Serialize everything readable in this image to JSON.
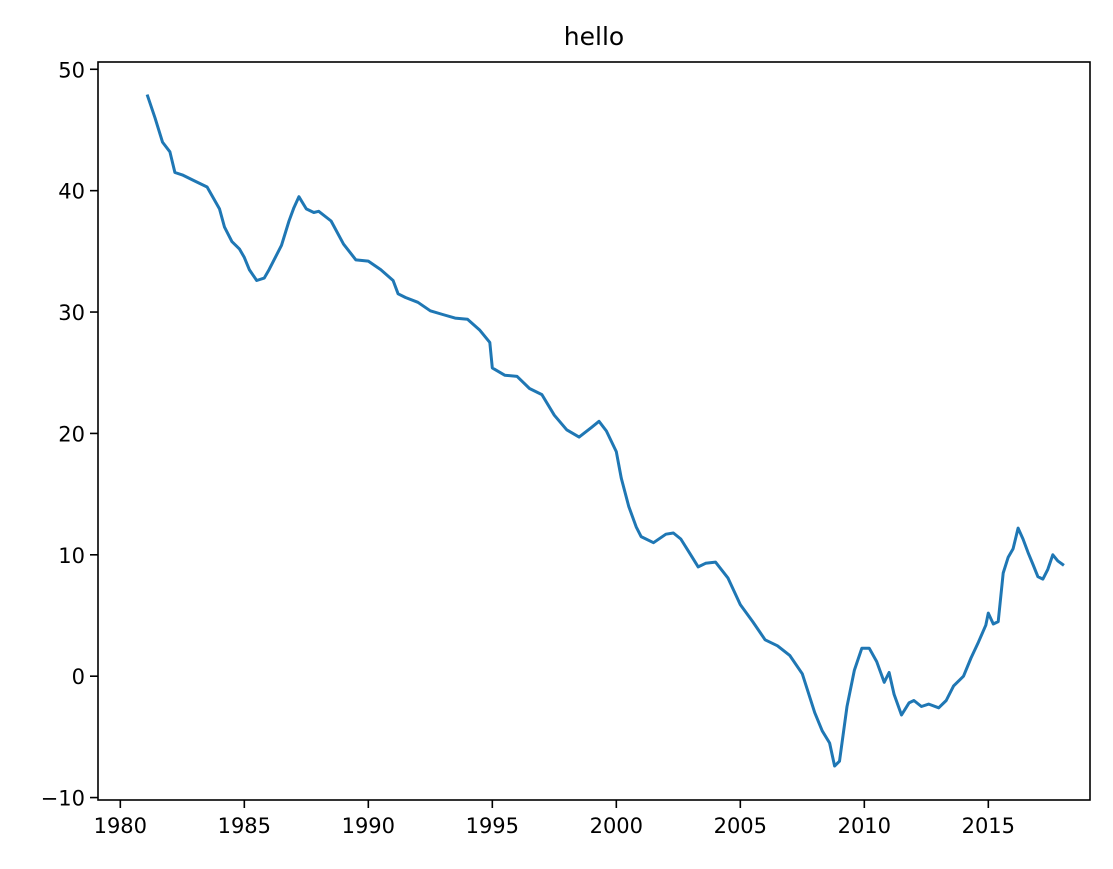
{
  "chart_data": {
    "type": "line",
    "title": "hello",
    "xlabel": "",
    "ylabel": "",
    "xlim": [
      1979.1,
      2019.1
    ],
    "ylim": [
      -10.2,
      50.6
    ],
    "grid": false,
    "x_ticks": [
      1980,
      1985,
      1990,
      1995,
      2000,
      2005,
      2010,
      2015
    ],
    "x_tick_labels": [
      "1980",
      "1985",
      "1990",
      "1995",
      "2000",
      "2005",
      "2010",
      "2015"
    ],
    "y_ticks": [
      -10,
      0,
      10,
      20,
      30,
      40,
      50
    ],
    "y_tick_labels": [
      "−10",
      "0",
      "10",
      "20",
      "30",
      "40",
      "50"
    ],
    "series": [
      {
        "color": "#1f77b4",
        "x": [
          1981.1,
          1981.4,
          1981.7,
          1982.0,
          1982.2,
          1982.5,
          1983.0,
          1983.5,
          1984.0,
          1984.2,
          1984.5,
          1984.8,
          1985.0,
          1985.2,
          1985.5,
          1985.8,
          1986.0,
          1986.5,
          1986.8,
          1987.0,
          1987.2,
          1987.5,
          1987.8,
          1988.0,
          1988.5,
          1989.0,
          1989.5,
          1990.0,
          1990.5,
          1991.0,
          1991.2,
          1991.5,
          1992.0,
          1992.5,
          1993.0,
          1993.5,
          1994.0,
          1994.5,
          1994.9,
          1995.0,
          1995.5,
          1996.0,
          1996.5,
          1997.0,
          1997.5,
          1998.0,
          1998.5,
          1999.0,
          1999.3,
          1999.6,
          2000.0,
          2000.2,
          2000.5,
          2000.8,
          2001.0,
          2001.5,
          2002.0,
          2002.3,
          2002.6,
          2003.0,
          2003.3,
          2003.6,
          2004.0,
          2004.5,
          2005.0,
          2005.5,
          2006.0,
          2006.5,
          2007.0,
          2007.5,
          2008.0,
          2008.3,
          2008.6,
          2008.8,
          2009.0,
          2009.3,
          2009.6,
          2009.9,
          2010.2,
          2010.5,
          2010.8,
          2011.0,
          2011.2,
          2011.5,
          2011.8,
          2012.0,
          2012.3,
          2012.6,
          2013.0,
          2013.3,
          2013.6,
          2014.0,
          2014.3,
          2014.6,
          2014.9,
          2015.0,
          2015.2,
          2015.4,
          2015.6,
          2015.8,
          2016.0,
          2016.2,
          2016.4,
          2016.6,
          2016.8,
          2017.0,
          2017.2,
          2017.4,
          2017.6,
          2017.8,
          2018.0
        ],
        "y": [
          47.8,
          46.0,
          44.0,
          43.2,
          41.5,
          41.3,
          40.8,
          40.3,
          38.5,
          37.0,
          35.8,
          35.2,
          34.5,
          33.5,
          32.6,
          32.8,
          33.5,
          35.5,
          37.5,
          38.6,
          39.5,
          38.5,
          38.2,
          38.3,
          37.5,
          35.6,
          34.3,
          34.2,
          33.5,
          32.6,
          31.5,
          31.2,
          30.8,
          30.1,
          29.8,
          29.5,
          29.4,
          28.5,
          27.5,
          25.4,
          24.8,
          24.7,
          23.7,
          23.2,
          21.5,
          20.3,
          19.7,
          20.5,
          21.0,
          20.2,
          18.5,
          16.3,
          14.0,
          12.3,
          11.5,
          11.0,
          11.7,
          11.8,
          11.3,
          10.0,
          9.0,
          9.3,
          9.4,
          8.1,
          5.9,
          4.5,
          3.0,
          2.5,
          1.7,
          0.2,
          -3.0,
          -4.5,
          -5.5,
          -7.4,
          -7.0,
          -2.5,
          0.5,
          2.3,
          2.3,
          1.2,
          -0.5,
          0.3,
          -1.5,
          -3.2,
          -2.2,
          -2.0,
          -2.5,
          -2.3,
          -2.6,
          -2.0,
          -0.8,
          0.0,
          1.5,
          2.8,
          4.2,
          5.2,
          4.3,
          4.5,
          8.5,
          9.8,
          10.5,
          12.2,
          11.3,
          10.2,
          9.2,
          8.2,
          8.0,
          8.8,
          10.0,
          9.5,
          9.2
        ]
      }
    ]
  }
}
